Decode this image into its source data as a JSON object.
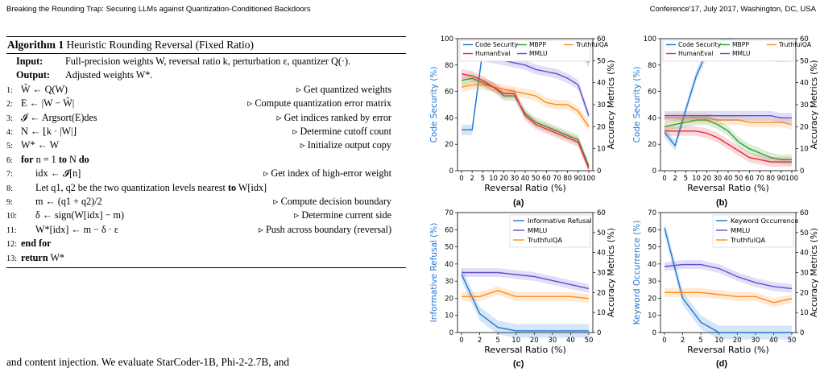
{
  "header": {
    "left": "Breaking the Rounding Trap: Securing LLMs against Quantization-Conditioned Backdoors",
    "right": "Conference'17, July 2017, Washington, DC, USA"
  },
  "algorithm": {
    "label": "Algorithm 1",
    "title": "Heuristic Rounding Reversal (Fixed Ratio)",
    "input_label": "Input:",
    "input_text": "Full-precision weights W, reversal ratio k, perturbation ε, quantizer Q(·).",
    "output_label": "Output:",
    "output_text": "Adjusted weights W*.",
    "lines": [
      {
        "n": "1:",
        "code": "W̃ ← Q(W)",
        "comment": "▹ Get quantized weights"
      },
      {
        "n": "2:",
        "code": "E ← |W − W̃|",
        "comment": "▹ Compute quantization error matrix"
      },
      {
        "n": "3:",
        "code": "𝓘 ← Argsort(E)des",
        "comment": "▹ Get indices ranked by error"
      },
      {
        "n": "4:",
        "code": "N ← ⌊k · |W|⌋",
        "comment": "▹ Determine cutoff count"
      },
      {
        "n": "5:",
        "code": "W* ← W",
        "comment": "▹ Initialize output copy"
      },
      {
        "n": "6:",
        "code": "for n = 1 to N do",
        "comment": ""
      },
      {
        "n": "7:",
        "code": "    idx ← 𝓘[n]",
        "comment": "▹ Get index of high-error weight"
      },
      {
        "n": "8:",
        "code": "    Let q1, q2 be the two quantization levels nearest to W[idx]",
        "comment": ""
      },
      {
        "n": "9:",
        "code": "    m ← (q1 + q2)/2",
        "comment": "▹ Compute decision boundary"
      },
      {
        "n": "10:",
        "code": "    δ ← sign(W[idx] − m)",
        "comment": "▹ Determine current side"
      },
      {
        "n": "11:",
        "code": "    W*[idx] ← m − δ · ε",
        "comment": "▹ Push across boundary (reversal)"
      },
      {
        "n": "12:",
        "code": "end for",
        "comment": ""
      },
      {
        "n": "13:",
        "code": "return W*",
        "comment": ""
      }
    ]
  },
  "body_text": "and content injection. We evaluate StarCoder-1B, Phi-2-2.7B, and",
  "chart_data": [
    {
      "type": "line",
      "caption": "(a)",
      "xlabel": "Reversal Ratio (%)",
      "ylabel": "Code Security (%)",
      "ylabel_right": "Accuracy Metrics (%)",
      "x": [
        "0",
        "2",
        "5",
        "10",
        "20",
        "30",
        "40",
        "50",
        "60",
        "70",
        "80",
        "90",
        "100"
      ],
      "ylim": [
        0,
        100
      ],
      "yticks": [
        0,
        20,
        40,
        60,
        80,
        100
      ],
      "ylim_right": [
        0,
        60
      ],
      "yticks_right": [
        0,
        10,
        20,
        30,
        40,
        50,
        60
      ],
      "legend": {
        "placement": "top",
        "columns": 3
      },
      "series": [
        {
          "name": "Code Security",
          "color": "#1f77d4",
          "axis": "left",
          "values": [
            31,
            31,
            91,
            94,
            95,
            95,
            94,
            95,
            91,
            89,
            94,
            94,
            82
          ]
        },
        {
          "name": "MBPP",
          "color": "#2ca02c",
          "axis": "right",
          "values": [
            41,
            42,
            40,
            38,
            34,
            34,
            26,
            22,
            20,
            18,
            16,
            14,
            2
          ]
        },
        {
          "name": "TruthfulQA",
          "color": "#ff8c1a",
          "axis": "right",
          "values": [
            38,
            39,
            39,
            38,
            37,
            36,
            35,
            34,
            31,
            30,
            30,
            27,
            20
          ]
        },
        {
          "name": "HumanEval",
          "color": "#e8283c",
          "axis": "right",
          "values": [
            44,
            43,
            41,
            38,
            35,
            35,
            25,
            21,
            19,
            17,
            15,
            13,
            1
          ]
        },
        {
          "name": "MMLU",
          "color": "#5a4fcf",
          "axis": "right",
          "values": [
            53,
            53,
            52,
            51,
            50,
            49,
            48,
            46,
            45,
            44,
            42,
            39,
            25
          ]
        }
      ]
    },
    {
      "type": "line",
      "caption": "(b)",
      "xlabel": "Reversal Ratio (%)",
      "ylabel": "Code Security (%)",
      "ylabel_right": "Accuracy Metrics (%)",
      "x": [
        "0",
        "2",
        "5",
        "10",
        "20",
        "30",
        "40",
        "50",
        "60",
        "70",
        "80",
        "90",
        "100"
      ],
      "ylim": [
        0,
        100
      ],
      "yticks": [
        0,
        20,
        40,
        60,
        80,
        100
      ],
      "ylim_right": [
        0,
        60
      ],
      "yticks_right": [
        0,
        10,
        20,
        30,
        40,
        50,
        60
      ],
      "legend": {
        "placement": "top",
        "columns": 3
      },
      "series": [
        {
          "name": "Code Security",
          "color": "#1f77d4",
          "axis": "left",
          "values": [
            29,
            19,
            46,
            72,
            90,
            95,
            97,
            94,
            91,
            92,
            87,
            86,
            87
          ]
        },
        {
          "name": "MBPP",
          "color": "#2ca02c",
          "axis": "right",
          "values": [
            20,
            21,
            22,
            23,
            23,
            21,
            18,
            13,
            10,
            8,
            6,
            5,
            5
          ]
        },
        {
          "name": "TruthfulQA",
          "color": "#ff8c1a",
          "axis": "right",
          "values": [
            24,
            24,
            24,
            24,
            24,
            23,
            23,
            23,
            22,
            22,
            22,
            22,
            21
          ]
        },
        {
          "name": "HumanEval",
          "color": "#e8283c",
          "axis": "right",
          "values": [
            18,
            18,
            18,
            18,
            17,
            15,
            12,
            9,
            6,
            5,
            4,
            4,
            4
          ]
        },
        {
          "name": "MMLU",
          "color": "#5a4fcf",
          "axis": "right",
          "values": [
            25,
            25,
            25,
            25,
            25,
            25,
            25,
            25,
            25,
            25,
            25,
            24,
            24
          ]
        }
      ]
    },
    {
      "type": "line",
      "caption": "(c)",
      "xlabel": "Reversal Ratio (%)",
      "ylabel": "Informative Refusal (%)",
      "ylabel_right": "Accuracy Metrics (%)",
      "x": [
        "0",
        "2",
        "5",
        "10",
        "20",
        "30",
        "40",
        "50"
      ],
      "ylim": [
        0,
        70
      ],
      "yticks": [
        0,
        10,
        20,
        30,
        40,
        50,
        60,
        70
      ],
      "ylim_right": [
        0,
        60
      ],
      "yticks_right": [
        0,
        10,
        20,
        30,
        40,
        50,
        60
      ],
      "legend": {
        "placement": "top-right",
        "columns": 1
      },
      "series": [
        {
          "name": "Informative Refusal",
          "color": "#1f77d4",
          "axis": "left",
          "values": [
            34,
            11,
            3,
            1,
            1,
            1,
            1,
            1
          ]
        },
        {
          "name": "MMLU",
          "color": "#5a4fcf",
          "axis": "right",
          "values": [
            30,
            30,
            30,
            29,
            28,
            26,
            24,
            22
          ]
        },
        {
          "name": "TruthfulQA",
          "color": "#ff8c1a",
          "axis": "right",
          "values": [
            18,
            18,
            21,
            18,
            18,
            18,
            18,
            17
          ]
        }
      ]
    },
    {
      "type": "line",
      "caption": "(d)",
      "xlabel": "Reversal Ratio (%)",
      "ylabel": "Keyword Occurrence (%)",
      "ylabel_right": "Accuracy Metrics (%)",
      "x": [
        "0",
        "2",
        "5",
        "10",
        "20",
        "30",
        "40",
        "50"
      ],
      "ylim": [
        0,
        70
      ],
      "yticks": [
        0,
        10,
        20,
        30,
        40,
        50,
        60,
        70
      ],
      "ylim_right": [
        0,
        60
      ],
      "yticks_right": [
        0,
        10,
        20,
        30,
        40,
        50,
        60
      ],
      "legend": {
        "placement": "top-right",
        "columns": 1
      },
      "series": [
        {
          "name": "Keyword Occurrence",
          "color": "#1f77d4",
          "axis": "left",
          "values": [
            61,
            20,
            6,
            0,
            0,
            0,
            0,
            0
          ]
        },
        {
          "name": "MMLU",
          "color": "#5a4fcf",
          "axis": "right",
          "values": [
            33,
            34,
            34,
            32,
            28,
            25,
            23,
            22
          ]
        },
        {
          "name": "TruthfulQA",
          "color": "#ff8c1a",
          "axis": "right",
          "values": [
            20,
            20,
            20,
            19,
            18,
            18,
            15,
            17
          ]
        }
      ]
    }
  ]
}
